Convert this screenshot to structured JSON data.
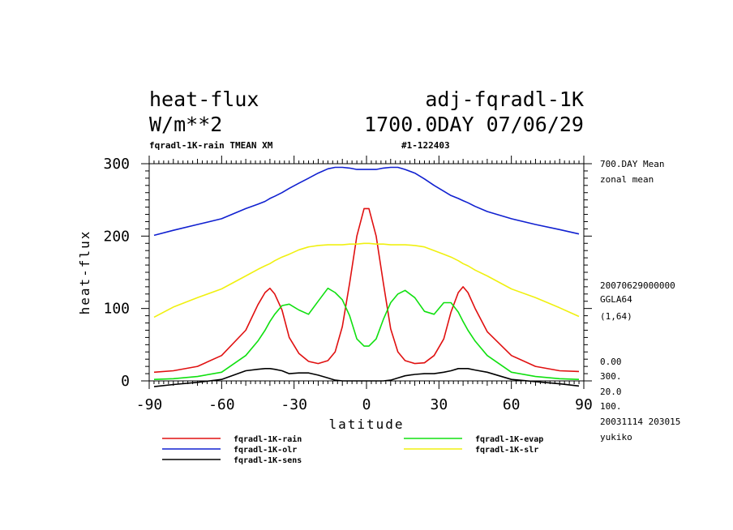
{
  "header": {
    "title": "heat-flux",
    "experiment": "adj-fqradl-1K",
    "units": "W/m**2",
    "time": "1700.0DAY 07/06/29",
    "subtitle_left": "fqradl-1K-rain TMEAN XM",
    "subtitle_right": "#1-122403"
  },
  "info": {
    "mean": "700.DAY Mean",
    "zonal": "zonal mean",
    "date": "20070629000000",
    "grid": "GGLA64",
    "index": "(1,64)",
    "v1": "0.00",
    "v2": "300.",
    "v3": "20.0",
    "v4": "100.",
    "stamp": "20031114 203015",
    "user": "yukiko"
  },
  "chart_data": {
    "type": "line",
    "xlabel": "latitude",
    "ylabel": "heat-flux",
    "xlim": [
      -90,
      90
    ],
    "ylim": [
      0,
      300
    ],
    "xticks": [
      "-90",
      "-60",
      "-30",
      "0",
      "30",
      "60",
      "90"
    ],
    "yticks": [
      "0",
      "100",
      "200",
      "300"
    ],
    "x": [
      -88,
      -80,
      -70,
      -60,
      -50,
      -45,
      -42,
      -40,
      -38,
      -35,
      -32,
      -28,
      -24,
      -20,
      -16,
      -13,
      -10,
      -7,
      -4,
      -1,
      1,
      4,
      7,
      10,
      13,
      16,
      20,
      24,
      28,
      32,
      35,
      38,
      40,
      42,
      45,
      50,
      60,
      70,
      80,
      88
    ],
    "series": [
      {
        "name": "fqradl-1K-rain",
        "color": "#e01010",
        "values": [
          12,
          14,
          20,
          35,
          70,
          105,
          122,
          128,
          120,
          98,
          60,
          38,
          27,
          24,
          28,
          40,
          75,
          135,
          200,
          238,
          238,
          200,
          135,
          72,
          40,
          28,
          24,
          25,
          35,
          58,
          95,
          122,
          130,
          122,
          100,
          68,
          35,
          20,
          14,
          13
        ]
      },
      {
        "name": "fqradl-1K-evap",
        "color": "#10e010",
        "values": [
          2,
          3,
          6,
          12,
          35,
          55,
          70,
          82,
          92,
          104,
          106,
          98,
          92,
          110,
          128,
          122,
          112,
          90,
          58,
          48,
          48,
          58,
          85,
          108,
          120,
          125,
          115,
          96,
          92,
          108,
          108,
          95,
          82,
          70,
          55,
          35,
          12,
          6,
          3,
          2
        ]
      },
      {
        "name": "fqradl-1K-olr",
        "color": "#1020d0",
        "values": [
          201,
          208,
          216,
          224,
          238,
          244,
          248,
          252,
          255,
          260,
          266,
          273,
          280,
          287,
          293,
          295,
          295,
          294,
          292,
          292,
          292,
          292,
          294,
          295,
          295,
          292,
          287,
          279,
          270,
          262,
          256,
          252,
          249,
          246,
          241,
          234,
          224,
          216,
          209,
          203
        ]
      },
      {
        "name": "fqradl-1K-slr",
        "color": "#f0f010",
        "values": [
          88,
          102,
          115,
          127,
          145,
          154,
          159,
          162,
          166,
          171,
          175,
          181,
          185,
          187,
          188,
          188,
          188,
          189,
          189,
          190,
          190,
          189,
          189,
          188,
          188,
          188,
          187,
          185,
          180,
          175,
          171,
          166,
          162,
          159,
          153,
          145,
          127,
          115,
          101,
          89
        ]
      },
      {
        "name": "fqradl-1K-sens",
        "color": "#000000",
        "values": [
          -8,
          -5,
          -2,
          2,
          14,
          16,
          17,
          17,
          16,
          14,
          10,
          11,
          11,
          8,
          4,
          1,
          0,
          0,
          0,
          0,
          0,
          0,
          0,
          1,
          4,
          7,
          9,
          10,
          10,
          12,
          14,
          17,
          17,
          17,
          15,
          12,
          2,
          -1,
          -4,
          -7
        ]
      }
    ],
    "legend_position": "bottom",
    "grid": false
  }
}
